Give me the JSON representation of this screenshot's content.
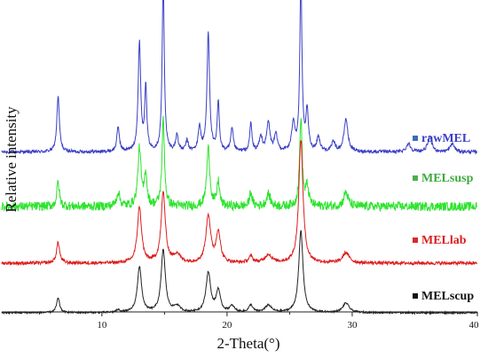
{
  "chart_data": {
    "type": "line",
    "title": "",
    "xlabel": "2-Theta(°)",
    "ylabel": "Relative intensity",
    "xlim": [
      2,
      40
    ],
    "x_ticks": [
      10,
      20,
      30,
      40
    ],
    "y_ticks_shown": false,
    "grid": false,
    "legend_placement": "right, next to each curve",
    "series": [
      {
        "name": "rawMEL",
        "color": "#3a3fc4",
        "marker_color": "#3b6cb7",
        "baseline": 0.135,
        "noise": 0.008,
        "peaks": [
          {
            "x": 6.5,
            "h": 0.27,
            "w": 0.12
          },
          {
            "x": 11.3,
            "h": 0.12,
            "w": 0.12
          },
          {
            "x": 13.0,
            "h": 0.53,
            "w": 0.12
          },
          {
            "x": 13.5,
            "h": 0.31,
            "w": 0.1
          },
          {
            "x": 14.9,
            "h": 0.84,
            "w": 0.1
          },
          {
            "x": 16.0,
            "h": 0.08,
            "w": 0.12
          },
          {
            "x": 16.8,
            "h": 0.05,
            "w": 0.12
          },
          {
            "x": 17.8,
            "h": 0.12,
            "w": 0.12
          },
          {
            "x": 18.5,
            "h": 0.58,
            "w": 0.12
          },
          {
            "x": 19.3,
            "h": 0.24,
            "w": 0.1
          },
          {
            "x": 20.4,
            "h": 0.11,
            "w": 0.12
          },
          {
            "x": 21.9,
            "h": 0.14,
            "w": 0.1
          },
          {
            "x": 22.7,
            "h": 0.07,
            "w": 0.15
          },
          {
            "x": 23.3,
            "h": 0.14,
            "w": 0.15
          },
          {
            "x": 23.9,
            "h": 0.08,
            "w": 0.15
          },
          {
            "x": 25.3,
            "h": 0.14,
            "w": 0.15
          },
          {
            "x": 25.9,
            "h": 0.84,
            "w": 0.1
          },
          {
            "x": 26.4,
            "h": 0.19,
            "w": 0.12
          },
          {
            "x": 27.3,
            "h": 0.07,
            "w": 0.15
          },
          {
            "x": 28.5,
            "h": 0.05,
            "w": 0.15
          },
          {
            "x": 29.5,
            "h": 0.16,
            "w": 0.18
          },
          {
            "x": 34.5,
            "h": 0.04,
            "w": 0.2
          },
          {
            "x": 36.2,
            "h": 0.07,
            "w": 0.2
          },
          {
            "x": 38.0,
            "h": 0.04,
            "w": 0.2
          }
        ]
      },
      {
        "name": "MELsusp",
        "color": "#2de32d",
        "marker_color": "#4db04d",
        "baseline": 0.0,
        "noise": 0.022,
        "peaks": [
          {
            "x": 6.5,
            "h": 0.12,
            "w": 0.12
          },
          {
            "x": 11.3,
            "h": 0.07,
            "w": 0.15
          },
          {
            "x": 13.0,
            "h": 0.28,
            "w": 0.15
          },
          {
            "x": 13.5,
            "h": 0.16,
            "w": 0.12
          },
          {
            "x": 14.9,
            "h": 0.42,
            "w": 0.12
          },
          {
            "x": 18.5,
            "h": 0.28,
            "w": 0.15
          },
          {
            "x": 19.3,
            "h": 0.12,
            "w": 0.12
          },
          {
            "x": 21.9,
            "h": 0.07,
            "w": 0.12
          },
          {
            "x": 23.3,
            "h": 0.06,
            "w": 0.18
          },
          {
            "x": 25.9,
            "h": 0.43,
            "w": 0.12
          },
          {
            "x": 26.4,
            "h": 0.09,
            "w": 0.15
          },
          {
            "x": 29.5,
            "h": 0.07,
            "w": 0.2
          }
        ]
      },
      {
        "name": "MELlab",
        "color": "#dc1e1e",
        "marker_color": "#d82a2a",
        "baseline": 0.0,
        "noise": 0.008,
        "peaks": [
          {
            "x": 6.5,
            "h": 0.1,
            "w": 0.15
          },
          {
            "x": 13.0,
            "h": 0.27,
            "w": 0.2
          },
          {
            "x": 14.9,
            "h": 0.34,
            "w": 0.2
          },
          {
            "x": 16.0,
            "h": 0.04,
            "w": 0.3
          },
          {
            "x": 18.5,
            "h": 0.23,
            "w": 0.22
          },
          {
            "x": 19.3,
            "h": 0.15,
            "w": 0.2
          },
          {
            "x": 21.9,
            "h": 0.03,
            "w": 0.2
          },
          {
            "x": 23.3,
            "h": 0.04,
            "w": 0.3
          },
          {
            "x": 25.9,
            "h": 0.6,
            "w": 0.2
          },
          {
            "x": 29.5,
            "h": 0.05,
            "w": 0.3
          }
        ]
      },
      {
        "name": "MELscup",
        "color": "#222222",
        "marker_color": "#111111",
        "baseline": 0.0,
        "noise": 0.007,
        "peaks": [
          {
            "x": 6.5,
            "h": 0.12,
            "w": 0.15
          },
          {
            "x": 11.3,
            "h": 0.02,
            "w": 0.2
          },
          {
            "x": 13.0,
            "h": 0.38,
            "w": 0.2
          },
          {
            "x": 14.9,
            "h": 0.52,
            "w": 0.2
          },
          {
            "x": 16.0,
            "h": 0.05,
            "w": 0.3
          },
          {
            "x": 18.5,
            "h": 0.33,
            "w": 0.22
          },
          {
            "x": 19.3,
            "h": 0.18,
            "w": 0.2
          },
          {
            "x": 20.4,
            "h": 0.05,
            "w": 0.25
          },
          {
            "x": 21.9,
            "h": 0.06,
            "w": 0.2
          },
          {
            "x": 23.3,
            "h": 0.06,
            "w": 0.3
          },
          {
            "x": 25.9,
            "h": 0.68,
            "w": 0.2
          },
          {
            "x": 29.5,
            "h": 0.08,
            "w": 0.3
          }
        ]
      }
    ]
  }
}
